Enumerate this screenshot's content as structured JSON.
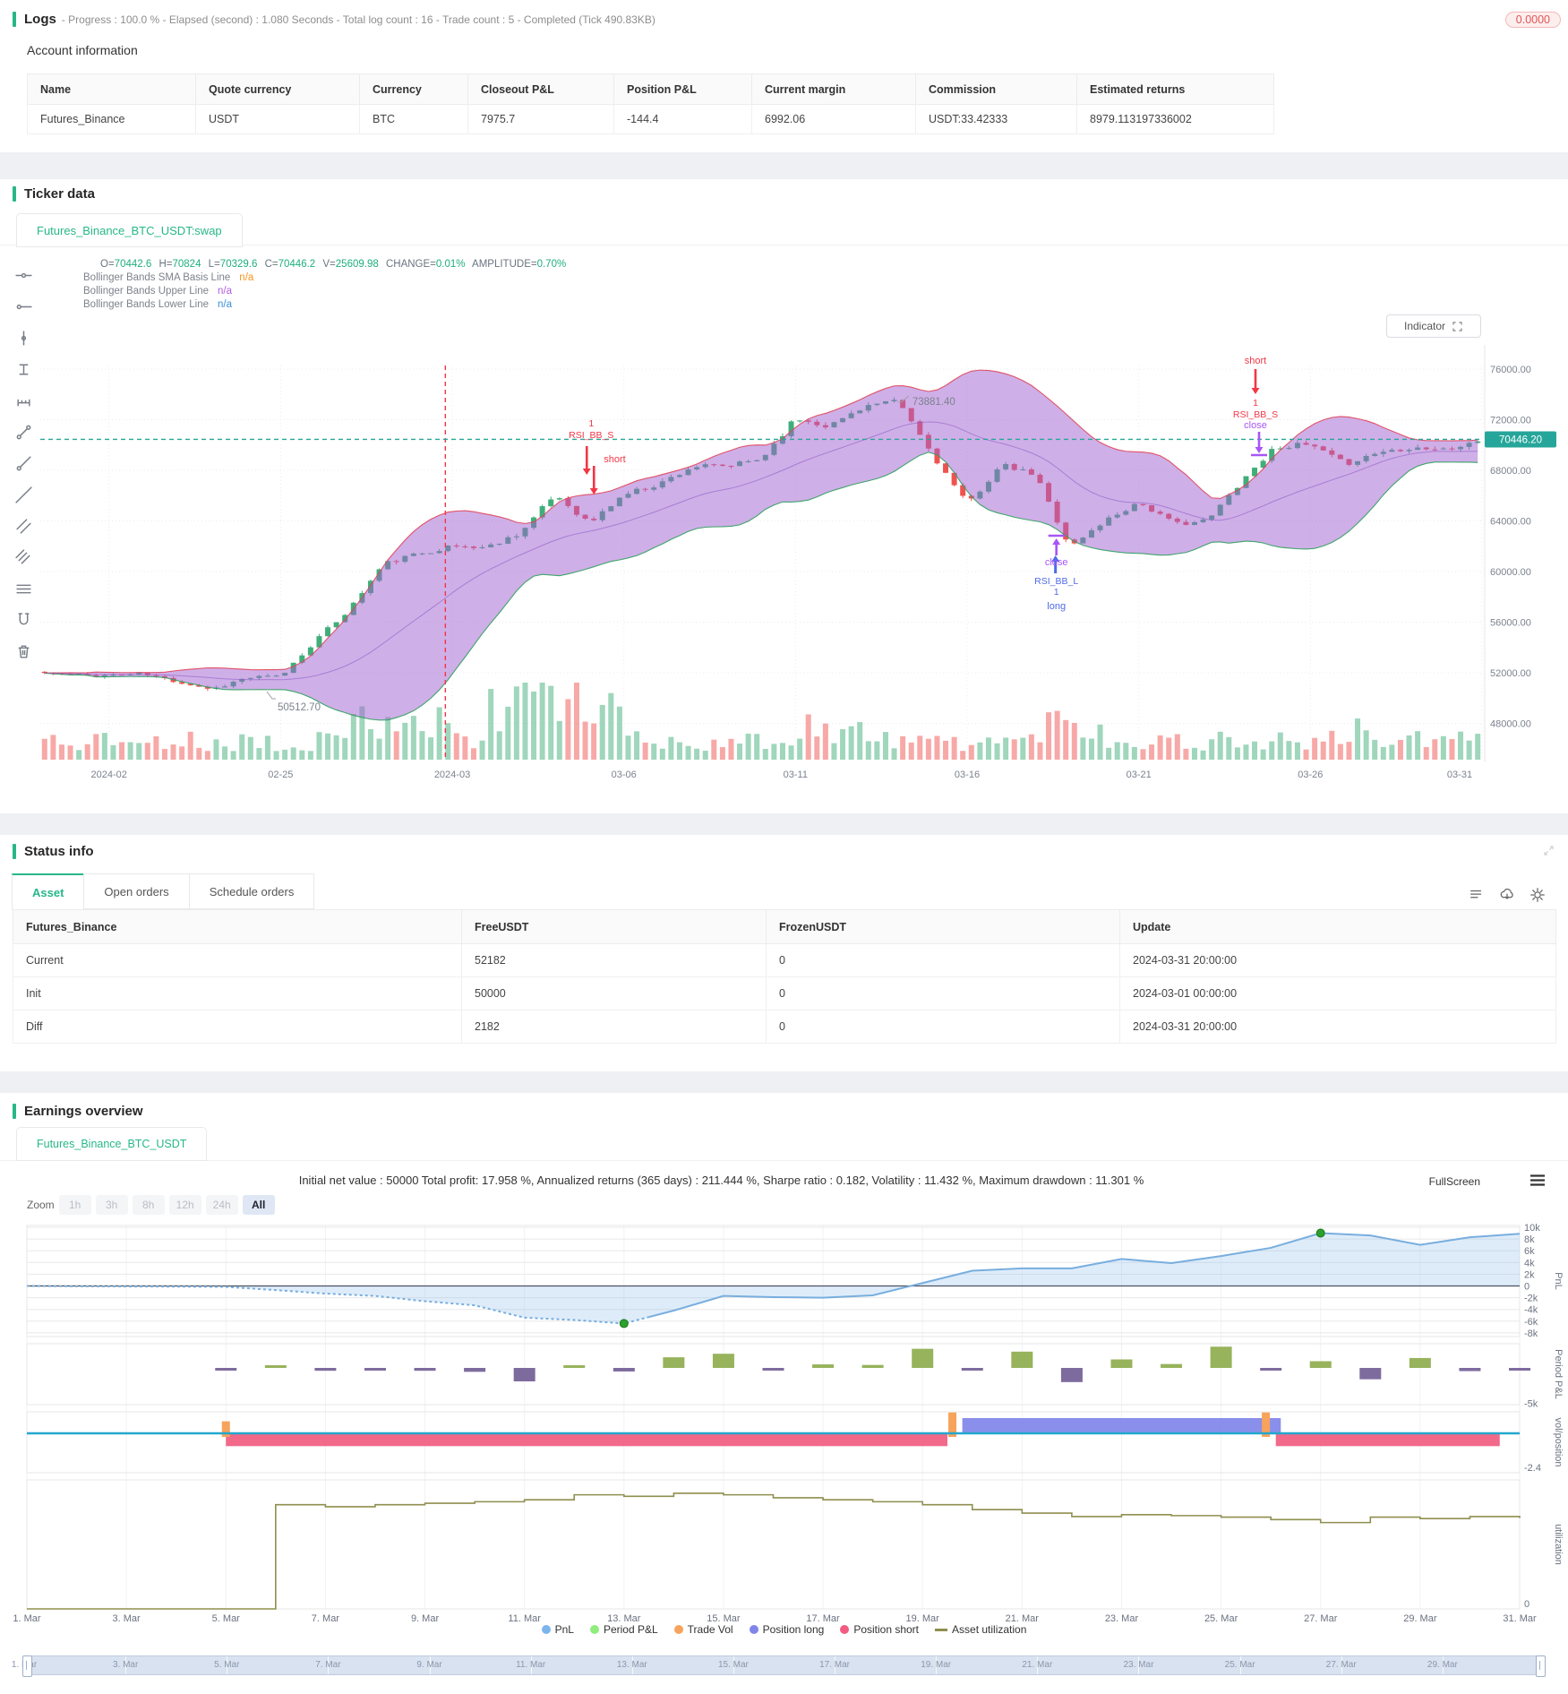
{
  "colors": {
    "accent": "#27b789",
    "badge_red": "#e25555",
    "up": "#3fae7a",
    "down": "#ef5350",
    "band": "#a05fd0",
    "band_upper": "#e0455a",
    "band_lower": "#2f9e5f",
    "band_mid": "#8e5bc9",
    "teal": "#26a69a",
    "signal_red": "#f23645",
    "signal_purple": "#a855f7",
    "signal_blue": "#4f6be8",
    "link_blue": "#3d8fd6",
    "neg_red": "#e34a4a",
    "pnl_line": "#78aede",
    "pnl_area": "rgba(124,181,236,0.25)",
    "pp_pos": "#97b35c",
    "pp_neg": "#7e6b9e",
    "trade_vol": "#f7a35c",
    "pos_long": "#8085e9",
    "pos_short": "#f15c80",
    "util": "#8f8f4f",
    "zero_teal": "#24a7cd",
    "marker_green": "#2ca02c"
  },
  "logs": {
    "title": "Logs",
    "meta": "- Progress : 100.0 % - Elapsed (second) : 1.080  Seconds - Total log count : 16 - Trade count : 5 - Completed (Tick 490.83KB)",
    "badge": "0.0000"
  },
  "account": {
    "title": "Account information",
    "headers": [
      "Name",
      "Quote currency",
      "Currency",
      "Closeout P&L",
      "Position P&L",
      "Current margin",
      "Commission",
      "Estimated returns"
    ],
    "row": [
      "Futures_Binance",
      "USDT",
      "BTC",
      "7975.7",
      "-144.4",
      "6992.06",
      "USDT:33.42333",
      "8979.113197336002"
    ]
  },
  "ticker": {
    "title": "Ticker data",
    "tab": "Futures_Binance_BTC_USDT:swap",
    "ohlc": [
      {
        "k": "O=",
        "v": "70442.6"
      },
      {
        "k": "H=",
        "v": "70824"
      },
      {
        "k": "L=",
        "v": "70329.6"
      },
      {
        "k": "C=",
        "v": "70446.2"
      },
      {
        "k": "V=",
        "v": "25609.98"
      },
      {
        "k": "CHANGE=",
        "v": "0.01%"
      },
      {
        "k": "AMPLITUDE=",
        "v": "0.70%"
      }
    ],
    "indicators": [
      {
        "label": "Bollinger Bands SMA Basis Line",
        "value": "n/a"
      },
      {
        "label": "Bollinger Bands Upper Line",
        "value": "n/a"
      },
      {
        "label": "Bollinger Bands Lower Line",
        "value": "n/a"
      }
    ],
    "indicator_button": "Indicator",
    "toolbar_icons": [
      "horizontal-segment-icon",
      "horizontal-ray-icon",
      "vertical-segment-icon",
      "price-range-icon",
      "measure-icon",
      "trend-line-icon",
      "ray-line-icon",
      "extended-line-icon",
      "parallel-channel-icon",
      "hatch-lines-icon",
      "list-lines-icon",
      "magnet-icon",
      "trash-icon"
    ]
  },
  "status": {
    "title": "Status info",
    "tabs": [
      "Asset",
      "Open orders",
      "Schedule orders"
    ],
    "icons": [
      "list-icon",
      "cloud-download-icon",
      "gear-icon"
    ],
    "table": {
      "headers": [
        "Futures_Binance",
        "FreeUSDT",
        "FrozenUSDT",
        "Update"
      ],
      "rows": [
        {
          "label": "Current",
          "free": "52182",
          "frozen": "0",
          "update": "2024-03-31 20:00:00"
        },
        {
          "label": "Init",
          "free": "50000",
          "frozen": "0",
          "update": "2024-03-01 00:00:00"
        },
        {
          "label": "Diff",
          "free": "2182",
          "frozen": "0",
          "update": "2024-03-31 20:00:00"
        }
      ]
    }
  },
  "earnings": {
    "title": "Earnings overview",
    "tab": "Futures_Binance_BTC_USDT",
    "stats": "Initial net value : 50000 Total profit: 17.958 %, Annualized returns (365 days) : 211.444 %, Sharpe ratio : 0.182, Volatility : 11.432 %, Maximum drawdown : 11.301 %",
    "fullscreen": "FullScreen",
    "zoom": {
      "label": "Zoom",
      "options": [
        "1h",
        "3h",
        "8h",
        "12h",
        "24h",
        "All"
      ],
      "active": "All"
    }
  },
  "chart_data": [
    {
      "type": "candlestick",
      "symbol": "Futures_Binance_BTC_USDT:swap",
      "days": 42,
      "bars_per_day": 4,
      "start_date": "2024-02-18",
      "end_date": "2024-03-31",
      "day_closes": [
        52000,
        51800,
        51800,
        51900,
        51300,
        50700,
        51600,
        51700,
        54500,
        57000,
        60600,
        61400,
        62000,
        61900,
        63100,
        66100,
        63800,
        66100,
        66900,
        68300,
        68300,
        68900,
        72100,
        71500,
        73100,
        73400,
        69200,
        65300,
        68400,
        67600,
        61900,
        64000,
        65500,
        63800,
        64000,
        67200,
        69900,
        69988,
        68500,
        69450,
        69850,
        69600,
        70446
      ],
      "volume_spikes": {
        "9": 2.2,
        "10": 2.6,
        "11": 2.0,
        "13": 3.2,
        "14": 4.2,
        "15": 3.0,
        "16": 3.6,
        "22": 1.8,
        "23": 1.6,
        "29": 2.0,
        "30": 1.8,
        "38": 1.5
      },
      "y_ticks": [
        76000,
        72000,
        68000,
        64000,
        60000,
        56000,
        52000,
        48000
      ],
      "x_ticks": [
        {
          "label": "2024-02",
          "day": 2
        },
        {
          "label": "02-25",
          "day": 7
        },
        {
          "label": "2024-03",
          "day": 12
        },
        {
          "label": "03-06",
          "day": 17
        },
        {
          "label": "03-11",
          "day": 22
        },
        {
          "label": "03-16",
          "day": 27
        },
        {
          "label": "03-21",
          "day": 32
        },
        {
          "label": "03-26",
          "day": 37
        },
        {
          "label": "03-31",
          "day": 42
        }
      ],
      "current_price": 70446.2,
      "current_price_label": "70446.20",
      "event_line_day": 11.8,
      "high_annotation": {
        "day": 25.3,
        "price": 73881.4,
        "label": "73881.40"
      },
      "low_annotation": {
        "day": 6.6,
        "price": 50512.7,
        "label": "50512.70"
      },
      "bollinger": {
        "window": 20,
        "mult": 2
      },
      "markers": [
        {
          "kind": "short-entry",
          "day": 16.05,
          "count": "1",
          "signal": "RSI_BB_S",
          "action": "short"
        },
        {
          "kind": "close-long-entry",
          "day": 29.6,
          "close": "close",
          "signal": "RSI_BB_L",
          "count": "1",
          "action": "long"
        },
        {
          "kind": "close-short-entry",
          "day": 35.4,
          "action": "short",
          "count": "1",
          "signal": "RSI_BB_S",
          "close": "close"
        }
      ]
    },
    {
      "type": "multi-panel-timeseries",
      "x_days": [
        1,
        31
      ],
      "x_tick_labels": [
        "1. Mar",
        "3. Mar",
        "5. Mar",
        "7. Mar",
        "9. Mar",
        "11. Mar",
        "13. Mar",
        "15. Mar",
        "17. Mar",
        "19. Mar",
        "21. Mar",
        "23. Mar",
        "25. Mar",
        "27. Mar",
        "29. Mar",
        "31. Mar"
      ],
      "panels": [
        {
          "name": "PnL",
          "tick_values": [
            10000,
            8000,
            6000,
            4000,
            2000,
            0,
            -2000,
            -4000,
            -6000,
            -8000
          ],
          "tick_labels": [
            "10k",
            "8k",
            "6k",
            "4k",
            "2k",
            "0",
            "-2k",
            "-4k",
            "-6k",
            "-8k"
          ],
          "values": [
            0,
            -60,
            -90,
            -110,
            -160,
            -700,
            -1300,
            -1700,
            -2600,
            -3300,
            -5400,
            -5800,
            -6400,
            -4200,
            -1700,
            -1900,
            -2000,
            -1600,
            500,
            2600,
            3000,
            3000,
            4600,
            3900,
            5100,
            6500,
            9000,
            8600,
            7000,
            8300,
            8900
          ],
          "dashed_until_day": 13.5,
          "min_marker": {
            "day": 13,
            "value": -6400
          },
          "max_marker": {
            "day": 27,
            "value": 9000
          }
        },
        {
          "name": "Period P&L",
          "axis_label": "-5k",
          "values": [
            0,
            0,
            0,
            0,
            -300,
            150,
            -400,
            -120,
            -400,
            -550,
            -1900,
            280,
            -500,
            1500,
            2000,
            -150,
            500,
            420,
            2700,
            -300,
            2300,
            -2000,
            1200,
            550,
            3000,
            -200,
            950,
            -1600,
            1400,
            -450,
            -350
          ]
        },
        {
          "name": "vol/position",
          "axis_label": "-2.4",
          "short_ranges": [
            [
              5,
              19.5
            ],
            [
              26.1,
              30.6
            ]
          ],
          "long_ranges": [
            [
              19.8,
              26.2
            ]
          ],
          "trade_vols": [
            {
              "day": 5,
              "h": 0.75
            },
            {
              "day": 19.6,
              "h": 1.3
            },
            {
              "day": 25.9,
              "h": 1.3
            }
          ]
        },
        {
          "name": "utilization",
          "axis_label": "0",
          "values": [
            0,
            0,
            0,
            0,
            0,
            2.1,
            2.06,
            2.1,
            2.13,
            2.16,
            2.2,
            2.3,
            2.27,
            2.33,
            2.3,
            2.24,
            2.2,
            2.16,
            2.1,
            2.0,
            1.93,
            1.86,
            1.9,
            1.88,
            1.85,
            1.8,
            1.74,
            1.85,
            1.82,
            1.86,
            1.83
          ]
        }
      ],
      "legend": [
        {
          "label": "PnL",
          "color": "#7cb5ec",
          "marker": "circle"
        },
        {
          "label": "Period P&L",
          "color": "#90ed7d",
          "marker": "circle"
        },
        {
          "label": "Trade Vol",
          "color": "#f7a35c",
          "marker": "circle"
        },
        {
          "label": "Position long",
          "color": "#8085e9",
          "marker": "circle"
        },
        {
          "label": "Position short",
          "color": "#f15c80",
          "marker": "circle"
        },
        {
          "label": "Asset utilization",
          "color": "#8f8f4f",
          "marker": "line"
        }
      ],
      "navigator_labels": [
        "1. Mar",
        "3. Mar",
        "5. Mar",
        "7. Mar",
        "9. Mar",
        "11. Mar",
        "13. Mar",
        "15. Mar",
        "17. Mar",
        "19. Mar",
        "21. Mar",
        "23. Mar",
        "25. Mar",
        "27. Mar",
        "29. Mar"
      ]
    }
  ]
}
